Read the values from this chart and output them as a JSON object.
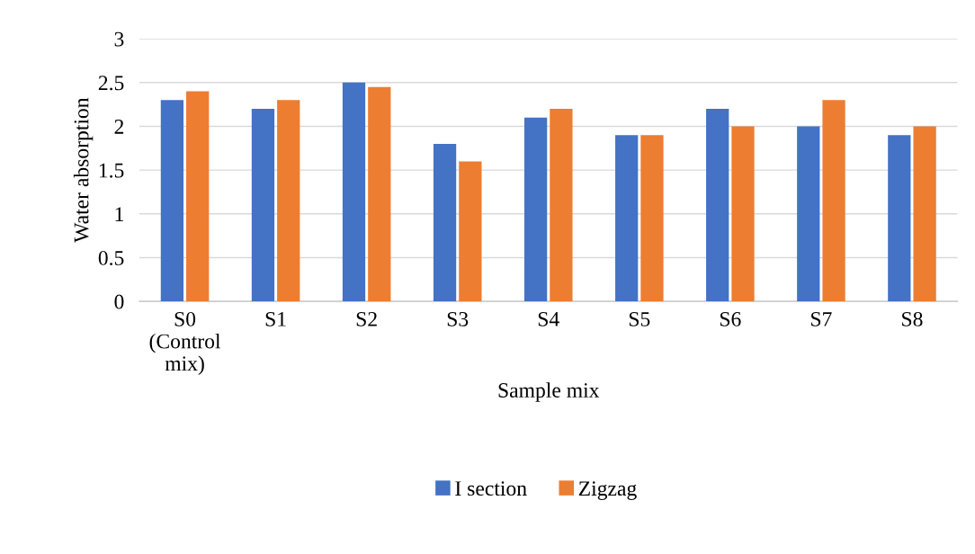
{
  "chart_data": {
    "type": "bar",
    "xlabel": "Sample mix",
    "ylabel": "Water absorption",
    "categories": [
      "S0\n(Control\nmix)",
      "S1",
      "S2",
      "S3",
      "S4",
      "S5",
      "S6",
      "S7",
      "S8"
    ],
    "series": [
      {
        "name": "I section",
        "color": "#4472c4",
        "values": [
          2.3,
          2.2,
          2.5,
          1.8,
          2.1,
          1.9,
          2.2,
          2.0,
          1.9
        ]
      },
      {
        "name": "Zigzag",
        "color": "#ed7d31",
        "values": [
          2.4,
          2.3,
          2.45,
          1.6,
          2.2,
          1.9,
          2.0,
          2.3,
          2.0
        ]
      }
    ],
    "ylim": [
      0,
      3
    ],
    "yticks": [
      0,
      {
        "value": 0.5,
        "label": "0.5"
      },
      1,
      {
        "value": 1.5,
        "label": "1.5"
      },
      2,
      {
        "value": 2.5,
        "label": "2.5"
      },
      3
    ],
    "grid": "y",
    "legend": "bottom"
  }
}
